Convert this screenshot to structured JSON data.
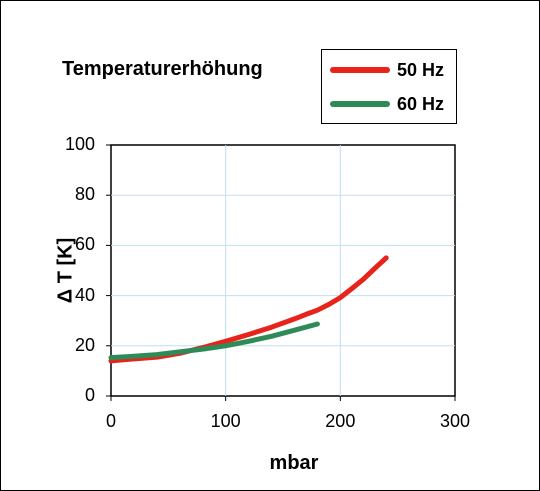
{
  "chart_data": {
    "type": "line",
    "title": "Temperaturerhöhung",
    "xlabel": "mbar",
    "ylabel": "Δ T [K]",
    "xlim": [
      0,
      300
    ],
    "ylim": [
      0,
      100
    ],
    "x_ticks": [
      "0",
      "100",
      "200",
      "300"
    ],
    "y_ticks": [
      "0",
      "20",
      "40",
      "60",
      "80",
      "100"
    ],
    "grid": true,
    "legend_position": "top-right",
    "series": [
      {
        "name": "50 Hz",
        "color": "#e8231c",
        "x": [
          0,
          20,
          40,
          60,
          80,
          100,
          120,
          140,
          160,
          170,
          180,
          190,
          200,
          210,
          220,
          230,
          240
        ],
        "y": [
          14,
          14.8,
          15.5,
          17,
          19.3,
          21.8,
          24.5,
          27.4,
          30.7,
          32.5,
          34.2,
          36.5,
          39.2,
          42.8,
          46.5,
          50.8,
          55
        ]
      },
      {
        "name": "60 Hz",
        "color": "#2e8b57",
        "x": [
          0,
          20,
          40,
          60,
          80,
          100,
          120,
          140,
          160,
          180
        ],
        "y": [
          15.3,
          15.8,
          16.5,
          17.6,
          18.7,
          20,
          21.8,
          23.8,
          26.2,
          28.7
        ]
      }
    ]
  }
}
